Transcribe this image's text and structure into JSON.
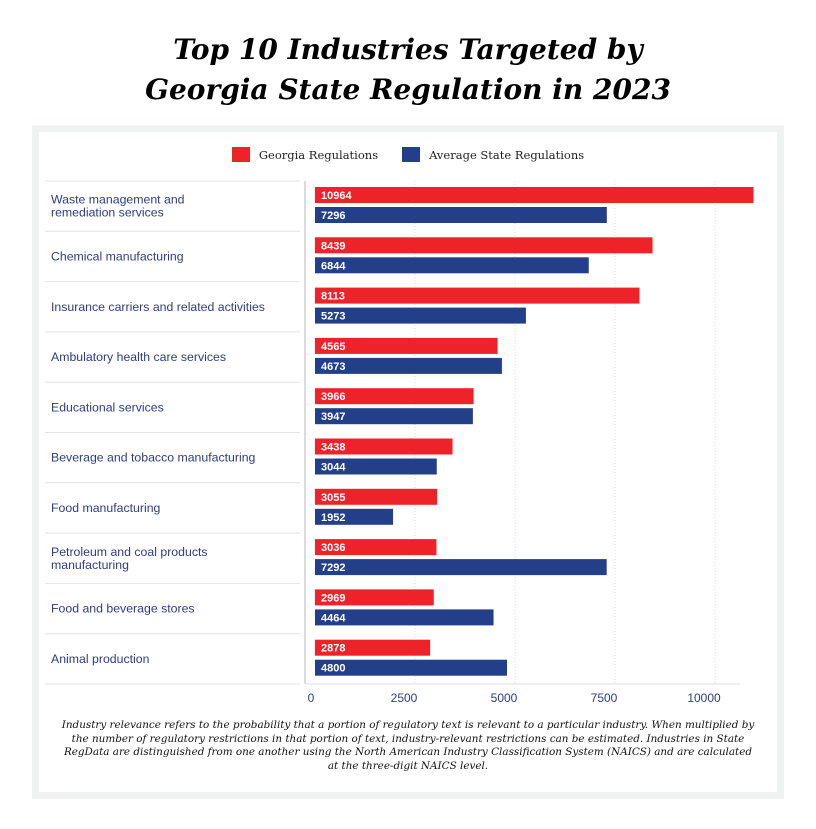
{
  "header": {
    "title_line1": "Top 10 Industries Targeted by",
    "title_line2": "Georgia State Regulation in 2023"
  },
  "colors": {
    "georgia": "#ee2229",
    "average": "#233f8a",
    "label_text": "#2e3b86",
    "frame": "#f0f1f1"
  },
  "chart_data": {
    "type": "bar",
    "orientation": "horizontal",
    "title": "Top 10 Industries Targeted by Georgia State Regulation in 2023",
    "xlabel": "",
    "ylabel": "",
    "xlim": [
      0,
      10000
    ],
    "xticks": [
      "0",
      "2500",
      "5000",
      "7500",
      "10000"
    ],
    "grid": true,
    "legend_position": "top-center",
    "categories": [
      "Waste management and remediation services",
      "Chemical manufacturing",
      "Insurance carriers and related activities",
      "Ambulatory health care services",
      "Educational services",
      "Beverage and tobacco manufacturing",
      "Food manufacturing",
      "Petroleum and coal products manufacturing",
      "Food and beverage stores",
      "Animal production"
    ],
    "category_lines": [
      [
        "Waste management and",
        "remediation services"
      ],
      [
        "Chemical manufacturing"
      ],
      [
        "Insurance carriers and related activities"
      ],
      [
        "Ambulatory health care services"
      ],
      [
        "Educational services"
      ],
      [
        "Beverage and tobacco manufacturing"
      ],
      [
        "Food manufacturing"
      ],
      [
        "Petroleum and coal products",
        "manufacturing"
      ],
      [
        "Food and beverage stores"
      ],
      [
        "Animal production"
      ]
    ],
    "series": [
      {
        "name": "Georgia Regulations",
        "values": [
          10964,
          8439,
          8113,
          4565,
          3966,
          3438,
          3055,
          3036,
          2969,
          2878
        ]
      },
      {
        "name": "Average State Regulations",
        "values": [
          7296,
          6844,
          5273,
          4673,
          3947,
          3044,
          1952,
          7292,
          4464,
          4800
        ]
      }
    ]
  },
  "legend": {
    "georgia_label": "Georgia Regulations",
    "average_label": "Average State Regulations"
  },
  "footnote": "Industry relevance refers to the probability that a portion of regulatory text is relevant to a particular industry. When multiplied by the number of regulatory restrictions in that portion of text, industry-relevant restrictions can be estimated. Industries in State RegData are distinguished from one another using the North American Industry Classification System (NAICS) and are calculated at the three-digit NAICS level."
}
